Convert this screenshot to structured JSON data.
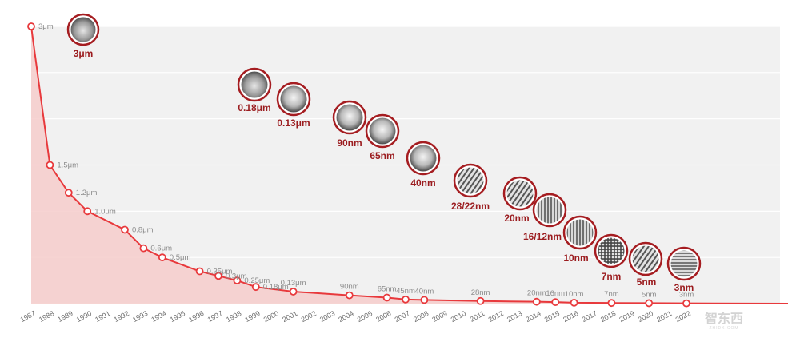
{
  "chart_data": {
    "type": "line",
    "x": [
      "1987",
      "1988",
      "1989",
      "1990",
      "1991",
      "1992",
      "1993",
      "1994",
      "1995",
      "1996",
      "1997",
      "1998",
      "1999",
      "2000",
      "2001",
      "2002",
      "2003",
      "2004",
      "2005",
      "2006",
      "2007",
      "2008",
      "2009",
      "2010",
      "2011",
      "2012",
      "2013",
      "2014",
      "2015",
      "2016",
      "2017",
      "2018",
      "2019",
      "2020",
      "2021",
      "2022"
    ],
    "points": [
      {
        "year": "1987",
        "label": "3μm",
        "value_um": 3.0
      },
      {
        "year": "1988",
        "label": "1.5μm",
        "value_um": 1.5
      },
      {
        "year": "1989",
        "label": "1.2μm",
        "value_um": 1.2
      },
      {
        "year": "1990",
        "label": "1.0μm",
        "value_um": 1.0
      },
      {
        "year": "1992",
        "label": "0.8μm",
        "value_um": 0.8
      },
      {
        "year": "1993",
        "label": "0.6μm",
        "value_um": 0.6
      },
      {
        "year": "1994",
        "label": "0.5μm",
        "value_um": 0.5
      },
      {
        "year": "1996",
        "label": "0.35μm",
        "value_um": 0.35
      },
      {
        "year": "1997",
        "label": "0.3μm",
        "value_um": 0.3
      },
      {
        "year": "1998",
        "label": "0.25μm",
        "value_um": 0.25
      },
      {
        "year": "1999",
        "label": "0.18μm",
        "value_um": 0.18
      },
      {
        "year": "2001",
        "label": "0.13μm",
        "value_um": 0.13
      },
      {
        "year": "2004",
        "label": "90nm",
        "value_um": 0.09
      },
      {
        "year": "2006",
        "label": "65nm",
        "value_um": 0.065
      },
      {
        "year": "2007",
        "label": "45nm",
        "value_um": 0.045
      },
      {
        "year": "2008",
        "label": "40nm",
        "value_um": 0.04
      },
      {
        "year": "2011",
        "label": "28nm",
        "value_um": 0.028
      },
      {
        "year": "2014",
        "label": "20nm",
        "value_um": 0.02
      },
      {
        "year": "2015",
        "label": "16nm",
        "value_um": 0.016
      },
      {
        "year": "2016",
        "label": "10nm",
        "value_um": 0.01
      },
      {
        "year": "2018",
        "label": "7nm",
        "value_um": 0.007
      },
      {
        "year": "2020",
        "label": "5nm",
        "value_um": 0.005
      },
      {
        "year": "2022",
        "label": "3nm",
        "value_um": 0.003
      }
    ],
    "ylim": [
      0,
      3
    ],
    "grid": true,
    "line_extends_to_right_edge": true,
    "colors": {
      "line": "#e8393c",
      "area": "#f6cccb",
      "plot_bg": "#f1f1f1",
      "gridline": "#ffffff",
      "badge_ring": "#a51d21",
      "badge_label": "#9b1c1f",
      "point_label": "#8c8c8c"
    },
    "process_badges": [
      {
        "label": "3μm",
        "icon": "cross-section-micrograph-icon"
      },
      {
        "label": "0.18μm",
        "icon": "cross-section-micrograph-icon"
      },
      {
        "label": "0.13μm",
        "icon": "transistor-micrograph-icon"
      },
      {
        "label": "90nm",
        "icon": "transistor-micrograph-icon"
      },
      {
        "label": "65nm",
        "icon": "transistor-micrograph-icon"
      },
      {
        "label": "40nm",
        "icon": "transistor-micrograph-icon"
      },
      {
        "label": "28/22nm",
        "icon": "finfet-micrograph-icon"
      },
      {
        "label": "20nm",
        "icon": "finfet-micrograph-icon"
      },
      {
        "label": "16/12nm",
        "icon": "fin-array-micrograph-icon"
      },
      {
        "label": "10nm",
        "icon": "fin-array-micrograph-icon"
      },
      {
        "label": "7nm",
        "icon": "dot-array-micrograph-icon"
      },
      {
        "label": "5nm",
        "icon": "finfet-micrograph-icon"
      },
      {
        "label": "3nm",
        "icon": "nanosheet-micrograph-icon"
      }
    ]
  }
}
